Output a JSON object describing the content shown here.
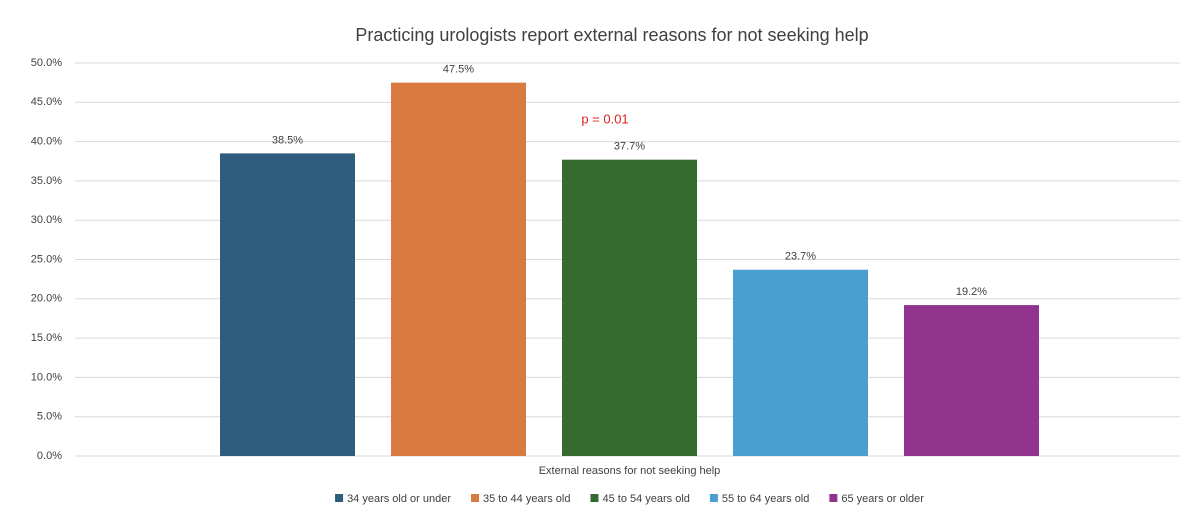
{
  "chart_data": {
    "type": "bar",
    "title": "Practicing urologists report external reasons for not seeking help",
    "annotation": "p = 0.01",
    "annotation_color": "#e0201b",
    "categories": [
      "External reasons for not seeking help"
    ],
    "series": [
      {
        "name": "34 years old or under",
        "color": "#2e5d7e",
        "values": [
          38.5
        ],
        "value_labels": [
          "38.5%"
        ]
      },
      {
        "name": "35 to 44 years old",
        "color": "#d97a40",
        "values": [
          47.5
        ],
        "value_labels": [
          "47.5%"
        ]
      },
      {
        "name": "45 to 54 years old",
        "color": "#356b2e",
        "values": [
          37.7
        ],
        "value_labels": [
          "37.7%"
        ]
      },
      {
        "name": "55 to 64 years old",
        "color": "#4a9ed1",
        "values": [
          23.7
        ],
        "value_labels": [
          "23.7%"
        ]
      },
      {
        "name": "65 years or older",
        "color": "#92348d",
        "values": [
          19.2
        ],
        "value_labels": [
          "19.2%"
        ]
      }
    ],
    "ylim": [
      0,
      50
    ],
    "yticks": [
      {
        "value": 0,
        "label": "0.0%"
      },
      {
        "value": 5,
        "label": "5.0%"
      },
      {
        "value": 10,
        "label": "10.0%"
      },
      {
        "value": 15,
        "label": "15.0%"
      },
      {
        "value": 20,
        "label": "20.0%"
      },
      {
        "value": 25,
        "label": "25.0%"
      },
      {
        "value": 30,
        "label": "30.0%"
      },
      {
        "value": 35,
        "label": "35.0%"
      },
      {
        "value": 40,
        "label": "40.0%"
      },
      {
        "value": 45,
        "label": "45.0%"
      },
      {
        "value": 50,
        "label": "50.0%"
      }
    ],
    "grid": true,
    "legend": "bottom"
  }
}
